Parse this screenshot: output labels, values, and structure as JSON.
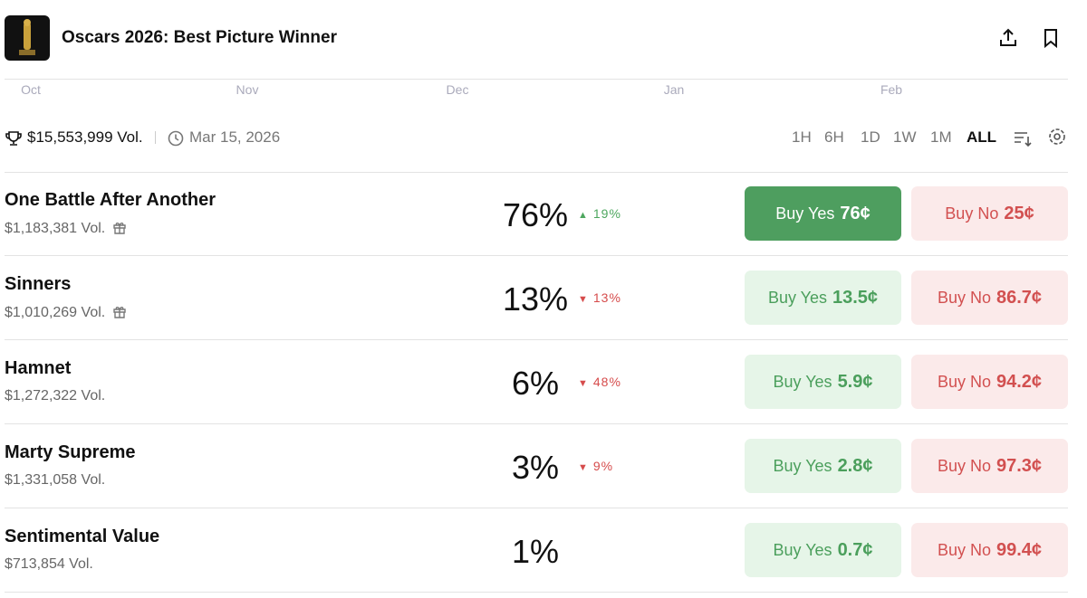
{
  "header": {
    "title": "Oscars 2026: Best Picture Winner"
  },
  "timeline": {
    "months": [
      "Oct",
      "Nov",
      "Dec",
      "Jan",
      "Feb"
    ]
  },
  "stats": {
    "volume": "$15,553,999 Vol.",
    "end_date": "Mar 15, 2026"
  },
  "ranges": [
    "1H",
    "6H",
    "1D",
    "1W",
    "1M",
    "ALL"
  ],
  "outcomes": [
    {
      "name": "One Battle After Another",
      "volume": "$1,183,381 Vol.",
      "gift": true,
      "chance": "76%",
      "change": "19%",
      "direction": "up",
      "yes_label": "Buy Yes",
      "yes_price": "76¢",
      "no_label": "Buy No",
      "no_price": "25¢",
      "yes_active": true
    },
    {
      "name": "Sinners",
      "volume": "$1,010,269 Vol.",
      "gift": true,
      "chance": "13%",
      "change": "13%",
      "direction": "down",
      "yes_label": "Buy Yes",
      "yes_price": "13.5¢",
      "no_label": "Buy No",
      "no_price": "86.7¢",
      "yes_active": false
    },
    {
      "name": "Hamnet",
      "volume": "$1,272,322 Vol.",
      "gift": false,
      "chance": "6%",
      "change": "48%",
      "direction": "down",
      "yes_label": "Buy Yes",
      "yes_price": "5.9¢",
      "no_label": "Buy No",
      "no_price": "94.2¢",
      "yes_active": false
    },
    {
      "name": "Marty Supreme",
      "volume": "$1,331,058 Vol.",
      "gift": false,
      "chance": "3%",
      "change": "9%",
      "direction": "down",
      "yes_label": "Buy Yes",
      "yes_price": "2.8¢",
      "no_label": "Buy No",
      "no_price": "97.3¢",
      "yes_active": false
    },
    {
      "name": "Sentimental Value",
      "volume": "$713,854 Vol.",
      "gift": false,
      "chance": "1%",
      "yes_label": "Buy Yes",
      "yes_price": "0.7¢",
      "no_label": "Buy No",
      "no_price": "99.4¢",
      "yes_active": false
    }
  ]
}
